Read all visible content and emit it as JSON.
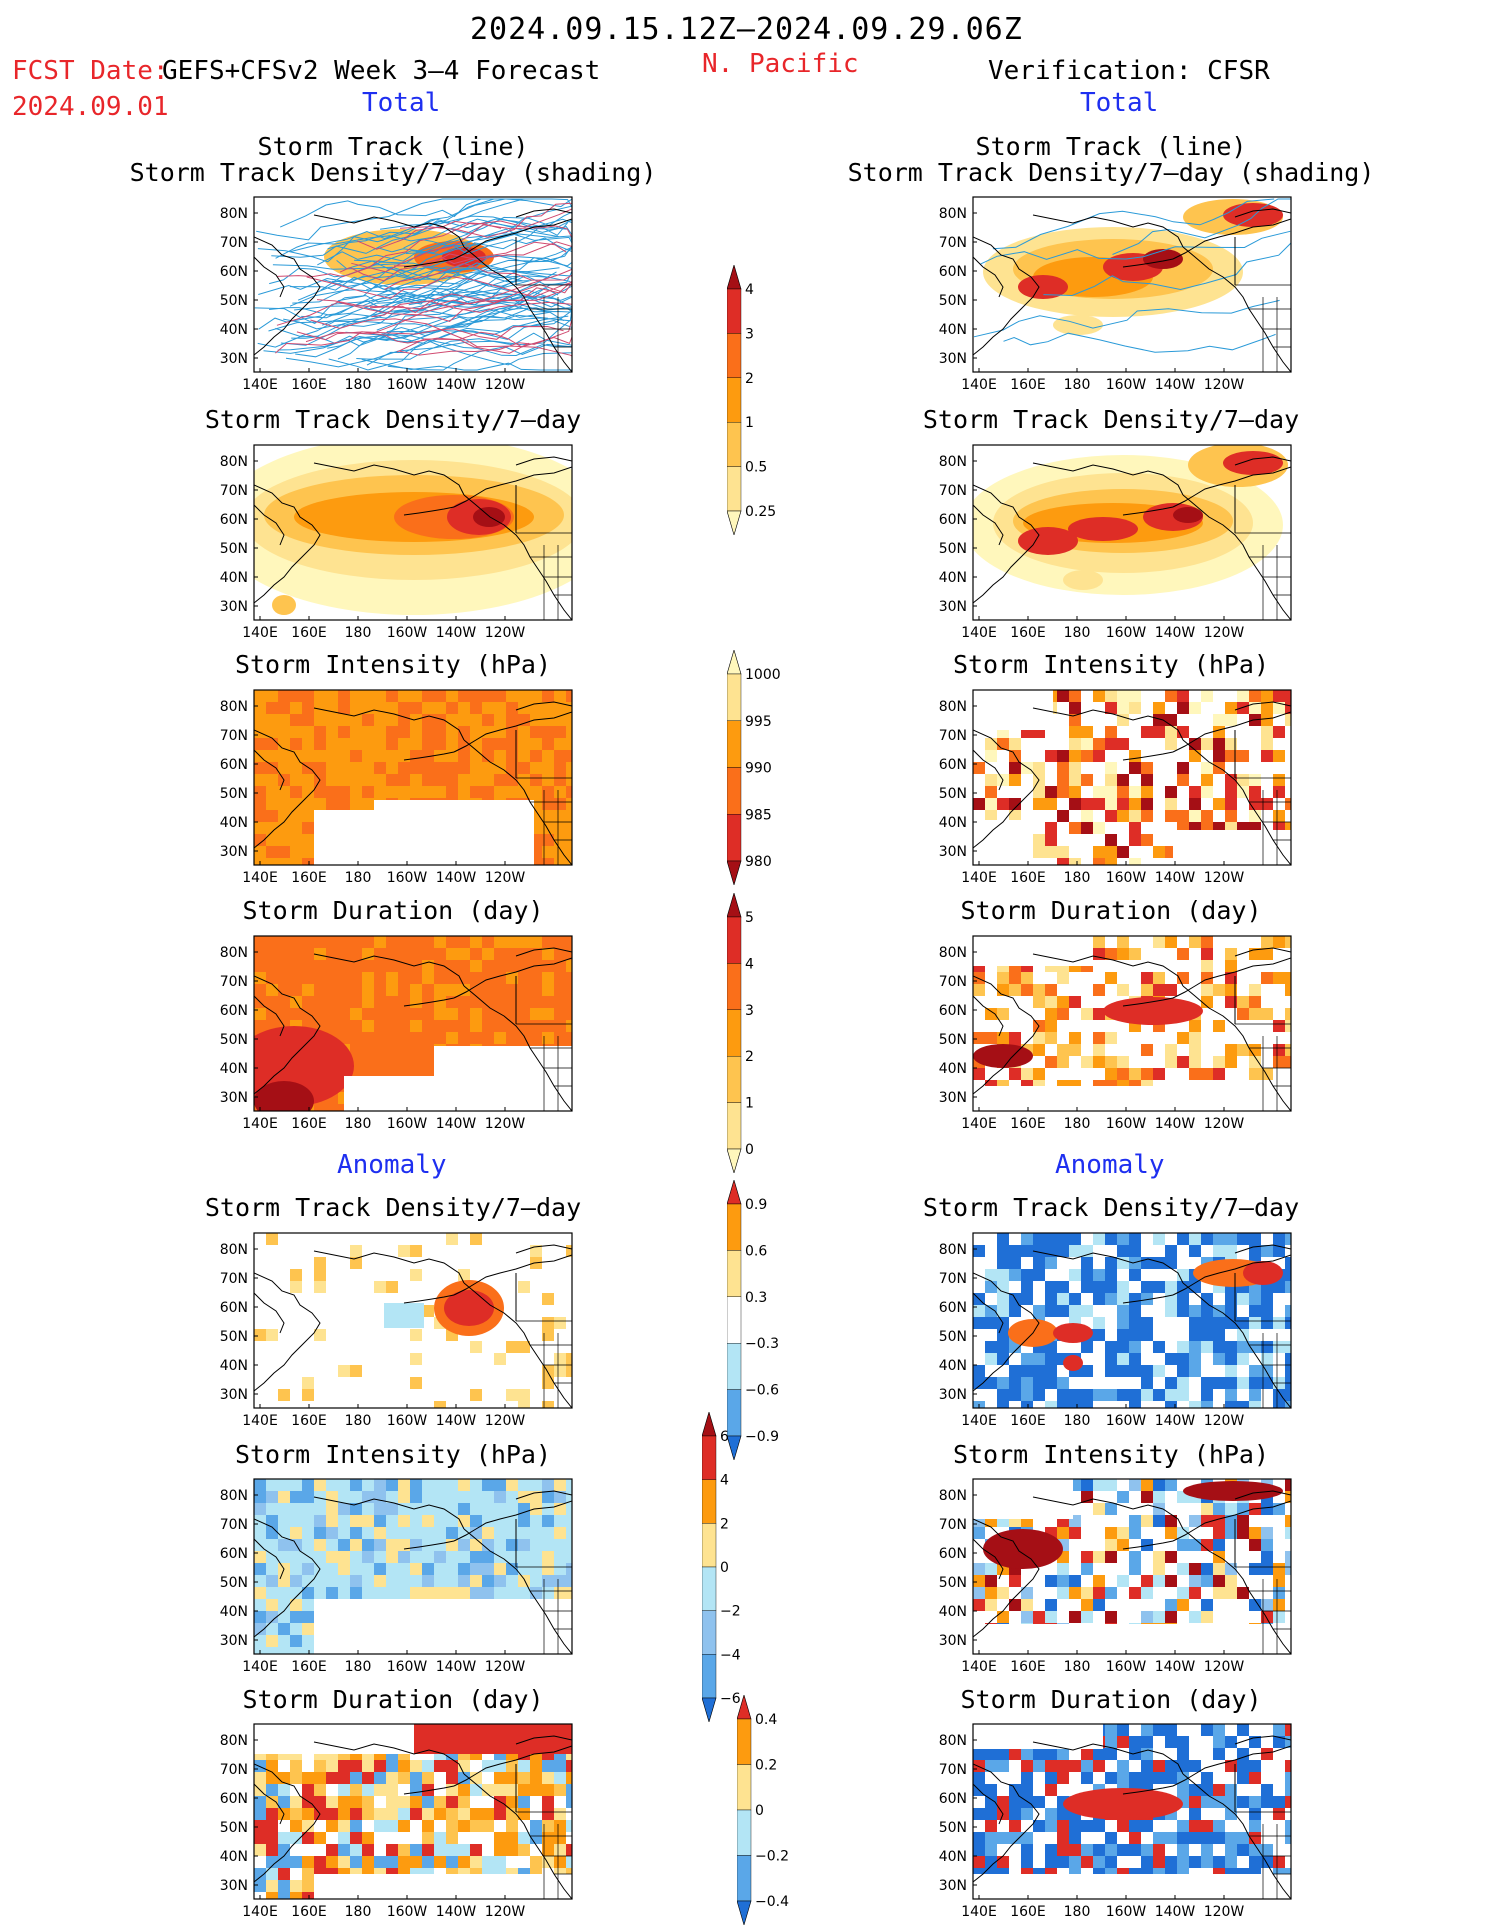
{
  "header": {
    "period": "2024.09.15.12Z–2024.09.29.06Z",
    "fcst_date_label": "FCST Date:",
    "fcst_date_value": "2024.09.01",
    "model": "GEFS+CFSv2 Week 3–4 Forecast",
    "region": "N. Pacific",
    "verification": "Verification: CFSR"
  },
  "section_labels": {
    "total": "Total",
    "anomaly": "Anomaly"
  },
  "panel_titles": {
    "track_line": "Storm Track (line)",
    "track_shading": "Storm Track Density/7–day (shading)",
    "density": "Storm Track Density/7–day",
    "intensity": "Storm Intensity (hPa)",
    "duration": "Storm Duration (day)"
  },
  "axes": {
    "lat_ticks": [
      "80N",
      "70N",
      "60N",
      "50N",
      "40N",
      "30N"
    ],
    "lon_ticks": [
      "140E",
      "160E",
      "180",
      "160W",
      "140W",
      "120W"
    ]
  },
  "colorbars": [
    {
      "name": "density-total",
      "labels": [
        "4",
        "3",
        "2",
        "1",
        "0.5",
        "0.25"
      ],
      "colors": [
        "#a50f15",
        "#de2d26",
        "#fa6f1a",
        "#fd9b0f",
        "#fec44f",
        "#fee391",
        "#fff7bc"
      ]
    },
    {
      "name": "intensity-total",
      "labels": [
        "1000",
        "995",
        "990",
        "985",
        "980"
      ],
      "colors": [
        "#fff7bc",
        "#fee391",
        "#fd9b0f",
        "#fa6f1a",
        "#de2d26",
        "#a50f15"
      ]
    },
    {
      "name": "duration-total",
      "labels": [
        "5",
        "4",
        "3",
        "2",
        "1",
        "0"
      ],
      "colors": [
        "#a50f15",
        "#de2d26",
        "#fa6f1a",
        "#fd9b0f",
        "#fec44f",
        "#fee391",
        "#fff7bc"
      ]
    },
    {
      "name": "density-anom",
      "labels": [
        "0.9",
        "0.6",
        "0.3",
        "−0.3",
        "−0.6",
        "−0.9"
      ],
      "colors": [
        "#de2d26",
        "#fd9b0f",
        "#fee391",
        "#ffffff",
        "#b3e5f5",
        "#5aa7e8",
        "#1f6fd6"
      ]
    },
    {
      "name": "intensity-anom",
      "labels": [
        "6",
        "4",
        "2",
        "0",
        "−2",
        "−4",
        "−6"
      ],
      "colors": [
        "#a50f15",
        "#de2d26",
        "#fd9b0f",
        "#fee391",
        "#b3e5f5",
        "#8fc2ee",
        "#5aa7e8",
        "#1f6fd6"
      ]
    },
    {
      "name": "duration-anom",
      "labels": [
        "0.4",
        "0.2",
        "0",
        "−0.2",
        "−0.4"
      ],
      "colors": [
        "#de2d26",
        "#fd9b0f",
        "#fee391",
        "#b3e5f5",
        "#5aa7e8",
        "#1f6fd6"
      ]
    }
  ]
}
